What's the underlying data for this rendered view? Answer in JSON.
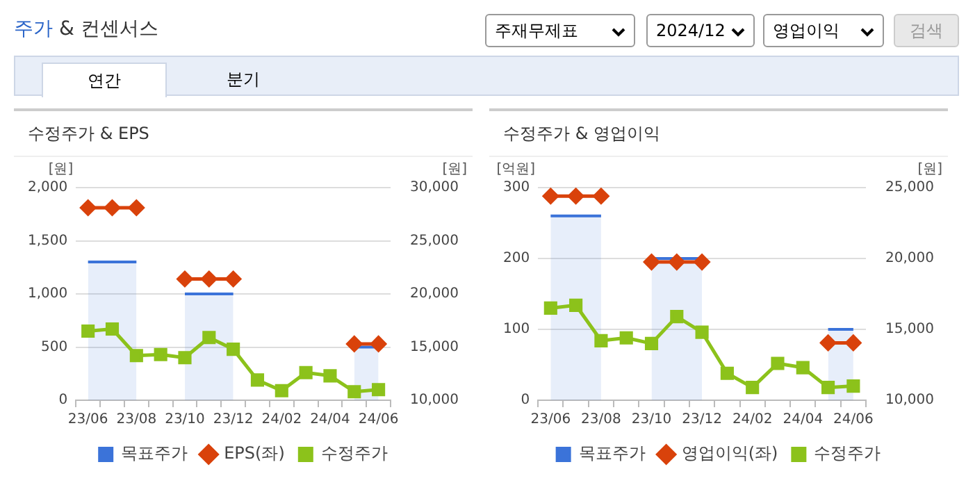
{
  "chart_data": [
    {
      "type": "other",
      "title": "주가 & 컨센서스",
      "annotations": [
        "주재무제표",
        "2024/12",
        "영업이익",
        "검색",
        "연간",
        "분기"
      ]
    },
    {
      "type": "line",
      "title": "수정주가 & EPS",
      "ylabel": "[원]",
      "y2label": "[원]",
      "categories": [
        "23/06",
        null,
        "23/08",
        null,
        "23/10",
        null,
        "23/12",
        null,
        "24/02",
        null,
        "24/04",
        null,
        "24/06"
      ],
      "series": [
        {
          "name": "목표주가",
          "type": "area",
          "axis": "y2",
          "color": "#3b73d9",
          "marker": "none",
          "values": [
            23000,
            23000,
            23000,
            null,
            20000,
            20000,
            20000,
            null,
            null,
            null,
            null,
            15000,
            15000
          ]
        },
        {
          "name": "EPS(좌)",
          "type": "line",
          "axis": "y",
          "color": "#d9420b",
          "marker": "diamond",
          "values": [
            1810,
            1810,
            1810,
            null,
            1140,
            1140,
            1140,
            null,
            null,
            null,
            null,
            530,
            530
          ]
        },
        {
          "name": "수정주가",
          "type": "line",
          "axis": "y2",
          "color": "#8cc21b",
          "marker": "square",
          "values": [
            16500,
            16700,
            14200,
            14300,
            14000,
            15900,
            14800,
            11900,
            10900,
            12600,
            12300,
            10800,
            11000
          ]
        }
      ],
      "ylim": [
        0,
        2000
      ],
      "yticks": [
        0,
        500,
        {
          "value": 1000,
          "label": "1,000"
        },
        {
          "value": 1500,
          "label": "1,500"
        },
        {
          "value": 2000,
          "label": "2,000"
        }
      ],
      "y2lim": [
        10000,
        30000
      ],
      "y2ticks": [
        {
          "value": 10000,
          "label": "10,000"
        },
        {
          "value": 15000,
          "label": "15,000"
        },
        {
          "value": 20000,
          "label": "20,000"
        },
        {
          "value": 25000,
          "label": "25,000"
        },
        {
          "value": 30000,
          "label": "30,000"
        }
      ],
      "grid": "y",
      "legend": "bottom"
    },
    {
      "type": "line",
      "title": "수정주가 & 영업이익",
      "ylabel": "[억원]",
      "y2label": "[원]",
      "categories": [
        "23/06",
        null,
        "23/08",
        null,
        "23/10",
        null,
        "23/12",
        null,
        "24/02",
        null,
        "24/04",
        null,
        "24/06"
      ],
      "series": [
        {
          "name": "목표주가",
          "type": "area",
          "axis": "y2",
          "color": "#3b73d9",
          "marker": "none",
          "values": [
            23000,
            23000,
            23000,
            null,
            20000,
            20000,
            20000,
            null,
            null,
            null,
            null,
            15000,
            15000
          ]
        },
        {
          "name": "영업이익(좌)",
          "type": "line",
          "axis": "y",
          "color": "#d9420b",
          "marker": "diamond",
          "values": [
            288,
            288,
            288,
            null,
            195,
            195,
            195,
            null,
            null,
            null,
            null,
            81,
            81
          ]
        },
        {
          "name": "수정주가",
          "type": "line",
          "axis": "y2",
          "color": "#8cc21b",
          "marker": "square",
          "values": [
            16500,
            16700,
            14200,
            14400,
            14000,
            15900,
            14800,
            11900,
            10900,
            12600,
            12300,
            10900,
            11000
          ]
        }
      ],
      "ylim": [
        0,
        300
      ],
      "yticks": [
        0,
        100,
        200,
        300
      ],
      "y2lim": [
        10000,
        25000
      ],
      "y2ticks": [
        {
          "value": 10000,
          "label": "10,000"
        },
        {
          "value": 15000,
          "label": "15,000"
        },
        {
          "value": 20000,
          "label": "20,000"
        },
        {
          "value": 25000,
          "label": "25,000"
        }
      ],
      "grid": "y",
      "legend": "bottom"
    }
  ]
}
